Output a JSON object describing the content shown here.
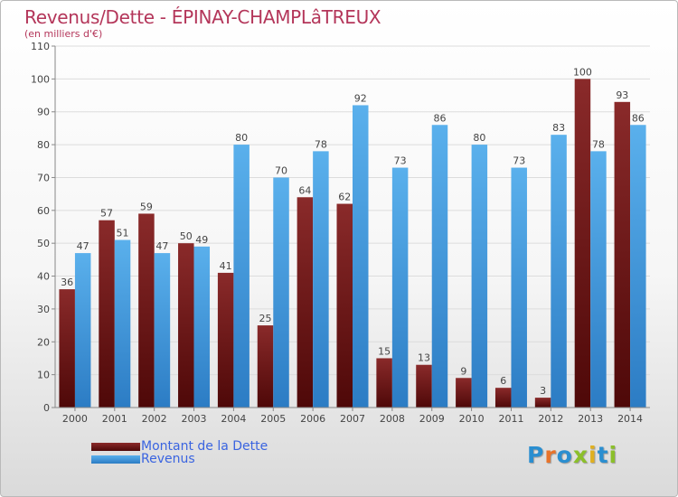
{
  "chart_data": {
    "type": "bar",
    "title": "Revenus/Dette - ÉPINAY-CHAMPLâTREUX",
    "subtitle": "(en milliers d'€)",
    "categories": [
      "2000",
      "2001",
      "2002",
      "2003",
      "2004",
      "2005",
      "2006",
      "2007",
      "2008",
      "2009",
      "2010",
      "2011",
      "2012",
      "2013",
      "2014"
    ],
    "series": [
      {
        "name": "Montant de la Dette",
        "color": "#7a1e1e",
        "values": [
          36,
          57,
          59,
          50,
          41,
          25,
          64,
          62,
          15,
          13,
          9,
          6,
          3,
          100,
          93
        ]
      },
      {
        "name": "Revenus",
        "color": "#4a9de0",
        "values": [
          47,
          51,
          47,
          49,
          80,
          70,
          78,
          92,
          73,
          86,
          80,
          73,
          83,
          78,
          86
        ]
      }
    ],
    "ylim": [
      0,
      110
    ],
    "yticks": [
      0,
      10,
      20,
      30,
      40,
      50,
      60,
      70,
      80,
      90,
      100,
      110
    ],
    "grid": true,
    "legend_position": "bottom-left"
  },
  "logo": {
    "text": "Proxiti",
    "letters": [
      "P",
      "r",
      "o",
      "x",
      "i",
      "t",
      "i"
    ],
    "colors": [
      "#2a8ed0",
      "#e8732a",
      "#2a8ed0",
      "#8bbf2a",
      "#e0b020",
      "#2a8ed0",
      "#8bbf2a"
    ]
  }
}
